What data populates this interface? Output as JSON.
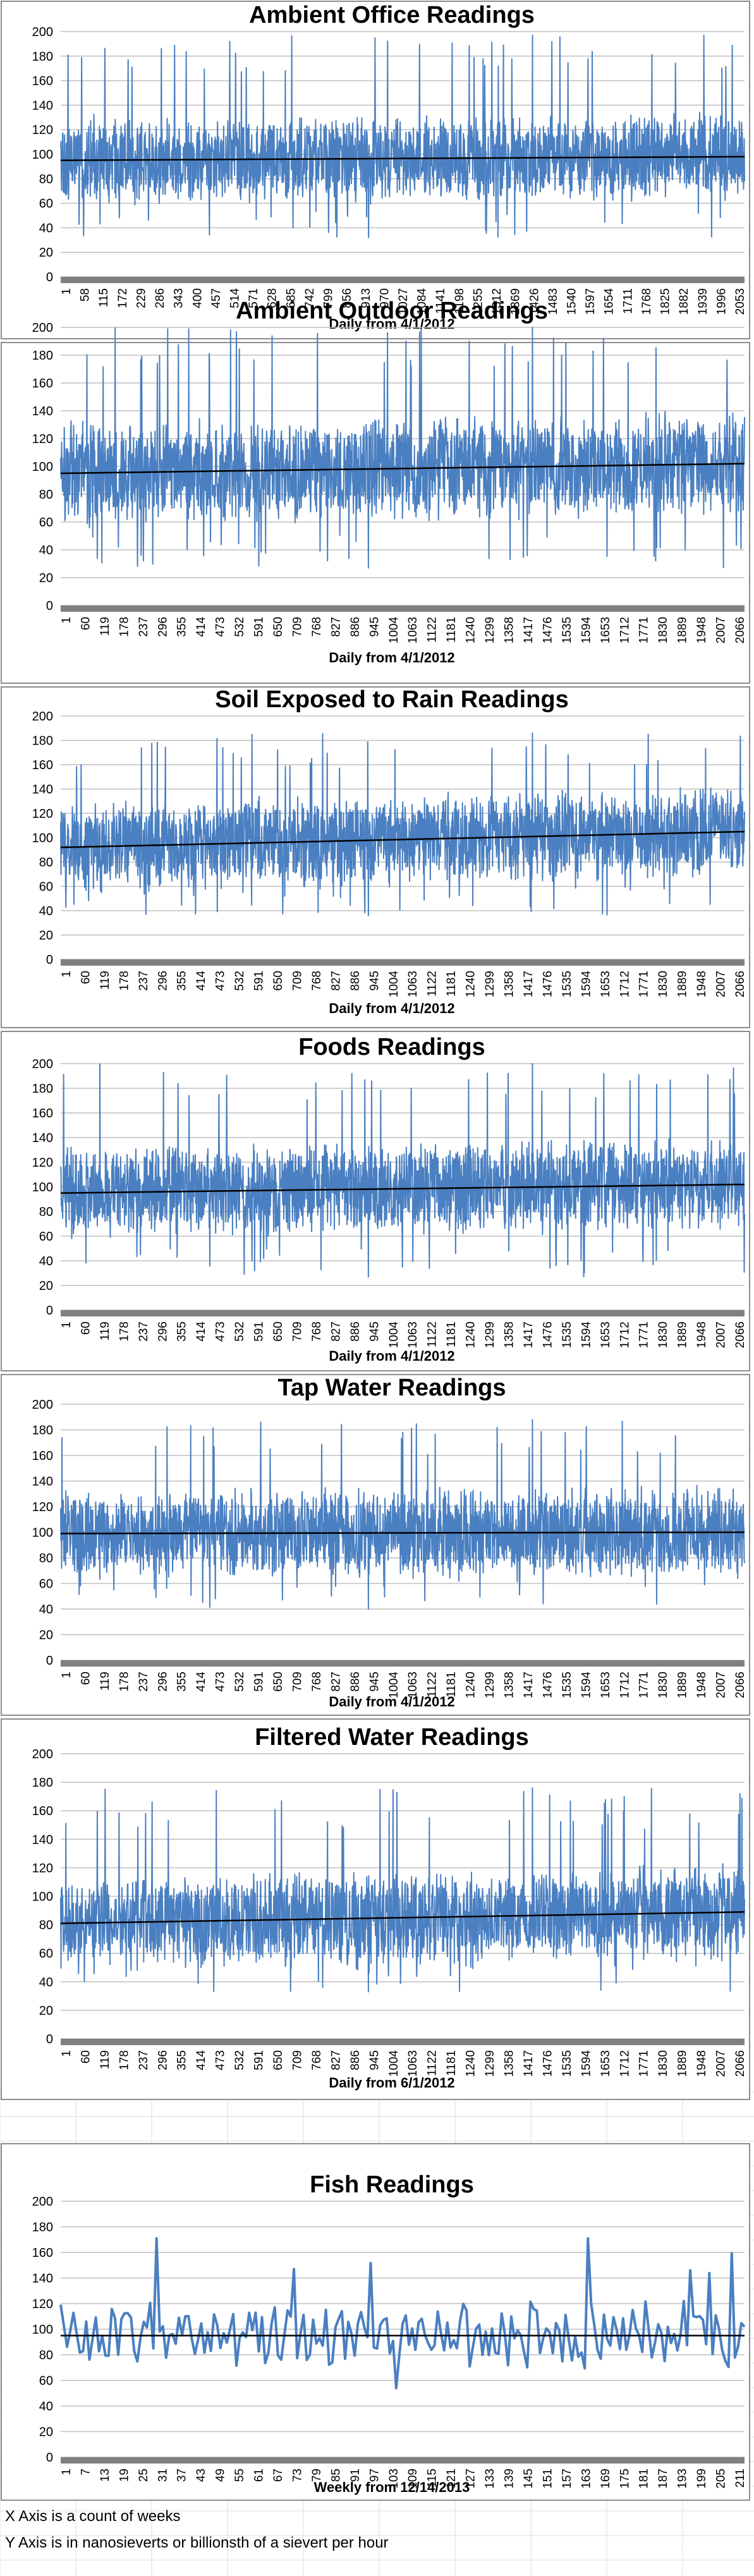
{
  "notes": {
    "x_axis": "X Axis is a count of weeks",
    "y_axis": "Y Axis is in nanosieverts or billionsth of a sievert per hour"
  },
  "colors": {
    "series_line": "#4a7fc1",
    "trendline": "#000000",
    "gridline": "#bfbfbf",
    "frame": "#8c8c8c",
    "sheet_grid": "#dcdcdc",
    "axis_band": "#808080"
  },
  "chart_data": [
    {
      "type": "line",
      "title": "Ambient Office Readings",
      "xlabel": "Daily from 4/1/2012",
      "ylabel": "",
      "ylim": [
        0,
        200
      ],
      "y_ticks": [
        0,
        20,
        40,
        60,
        80,
        100,
        120,
        140,
        160,
        180,
        200
      ],
      "x_ticks": [
        "1",
        "58",
        "115",
        "172",
        "229",
        "286",
        "343",
        "400",
        "457",
        "514",
        "571",
        "628",
        "685",
        "742",
        "799",
        "856",
        "913",
        "970",
        "1027",
        "1084",
        "1141",
        "1198",
        "1255",
        "1312",
        "1369",
        "1426",
        "1483",
        "1540",
        "1597",
        "1654",
        "1711",
        "1768",
        "1825",
        "1882",
        "1939",
        "1996",
        "2053"
      ],
      "n_points": 2120,
      "series": [
        {
          "mean": 96,
          "min": 32,
          "max": 197,
          "band": [
            60,
            135
          ]
        }
      ],
      "trendline": {
        "type": "linear",
        "y_start": 95,
        "y_end": 98
      }
    },
    {
      "type": "line",
      "title": "Ambient Outdoor Readings",
      "xlabel": "Daily from 4/1/2012",
      "ylabel": "",
      "ylim": [
        0,
        200
      ],
      "y_ticks": [
        0,
        20,
        40,
        60,
        80,
        100,
        120,
        140,
        160,
        180,
        200
      ],
      "x_ticks": [
        "1",
        "60",
        "119",
        "178",
        "237",
        "296",
        "355",
        "414",
        "473",
        "532",
        "591",
        "650",
        "709",
        "768",
        "827",
        "886",
        "945",
        "1004",
        "1063",
        "1122",
        "1181",
        "1240",
        "1299",
        "1358",
        "1417",
        "1476",
        "1535",
        "1594",
        "1653",
        "1712",
        "1771",
        "1830",
        "1889",
        "1948",
        "2007",
        "2066"
      ],
      "n_points": 2110,
      "series": [
        {
          "mean": 99,
          "min": 27,
          "max": 200,
          "band": [
            60,
            140
          ]
        }
      ],
      "trendline": {
        "type": "linear",
        "y_start": 95,
        "y_end": 102
      }
    },
    {
      "type": "line",
      "title": "Soil Exposed to Rain Readings",
      "xlabel": "Daily from 4/1/2012",
      "ylabel": "",
      "ylim": [
        0,
        200
      ],
      "y_ticks": [
        0,
        20,
        40,
        60,
        80,
        100,
        120,
        140,
        160,
        180,
        200
      ],
      "x_ticks": [
        "1",
        "60",
        "119",
        "178",
        "237",
        "296",
        "355",
        "414",
        "473",
        "532",
        "591",
        "650",
        "709",
        "768",
        "827",
        "886",
        "945",
        "1004",
        "1063",
        "1122",
        "1181",
        "1240",
        "1299",
        "1358",
        "1417",
        "1476",
        "1535",
        "1594",
        "1653",
        "1712",
        "1771",
        "1830",
        "1889",
        "1948",
        "2007",
        "2066"
      ],
      "n_points": 2110,
      "series": [
        {
          "mean": 98,
          "min": 36,
          "max": 186,
          "band": [
            62,
            140
          ]
        }
      ],
      "trendline": {
        "type": "linear",
        "y_start": 92,
        "y_end": 105
      }
    },
    {
      "type": "line",
      "title": "Foods Readings",
      "xlabel": "Daily from 4/1/2012",
      "ylabel": "",
      "ylim": [
        0,
        200
      ],
      "y_ticks": [
        0,
        20,
        40,
        60,
        80,
        100,
        120,
        140,
        160,
        180,
        200
      ],
      "x_ticks": [
        "1",
        "60",
        "119",
        "178",
        "237",
        "296",
        "355",
        "414",
        "473",
        "532",
        "591",
        "650",
        "709",
        "768",
        "827",
        "886",
        "945",
        "1004",
        "1063",
        "1122",
        "1181",
        "1240",
        "1299",
        "1358",
        "1417",
        "1476",
        "1535",
        "1594",
        "1653",
        "1712",
        "1771",
        "1830",
        "1889",
        "1948",
        "2007",
        "2066"
      ],
      "n_points": 2110,
      "series": [
        {
          "mean": 99,
          "min": 27,
          "max": 200,
          "band": [
            60,
            140
          ]
        }
      ],
      "trendline": {
        "type": "linear",
        "y_start": 95,
        "y_end": 102
      }
    },
    {
      "type": "line",
      "title": "Tap Water Readings",
      "xlabel": "Daily from 4/1/2012",
      "ylabel": "",
      "ylim": [
        0,
        200
      ],
      "y_ticks": [
        0,
        20,
        40,
        60,
        80,
        100,
        120,
        140,
        160,
        180,
        200
      ],
      "x_ticks": [
        "1",
        "60",
        "119",
        "178",
        "237",
        "296",
        "355",
        "414",
        "473",
        "532",
        "591",
        "650",
        "709",
        "768",
        "827",
        "886",
        "945",
        "1004",
        "1063",
        "1122",
        "1181",
        "1240",
        "1299",
        "1358",
        "1417",
        "1476",
        "1535",
        "1594",
        "1653",
        "1712",
        "1771",
        "1830",
        "1889",
        "1948",
        "2007",
        "2066"
      ],
      "n_points": 2110,
      "series": [
        {
          "mean": 100,
          "min": 40,
          "max": 188,
          "band": [
            64,
            138
          ]
        }
      ],
      "trendline": {
        "type": "linear",
        "y_start": 99,
        "y_end": 100
      }
    },
    {
      "type": "line",
      "title": "Filtered Water Readings",
      "xlabel": "Daily from 6/1/2012",
      "ylabel": "",
      "ylim": [
        0,
        200
      ],
      "y_ticks": [
        0,
        20,
        40,
        60,
        80,
        100,
        120,
        140,
        160,
        180,
        200
      ],
      "x_ticks": [
        "1",
        "60",
        "119",
        "178",
        "237",
        "296",
        "355",
        "414",
        "473",
        "532",
        "591",
        "650",
        "709",
        "768",
        "827",
        "886",
        "945",
        "1004",
        "1063",
        "1122",
        "1181",
        "1240",
        "1299",
        "1358",
        "1417",
        "1476",
        "1535",
        "1594",
        "1653",
        "1712",
        "1771",
        "1830",
        "1889",
        "1948",
        "2007",
        "2066"
      ],
      "n_points": 2110,
      "series": [
        {
          "mean": 86,
          "min": 33,
          "max": 176,
          "band": [
            55,
            125
          ]
        }
      ],
      "trendline": {
        "type": "linear",
        "y_start": 81,
        "y_end": 89
      }
    },
    {
      "type": "line",
      "title": "Fish Readings",
      "xlabel": "Weekly from 12/14/2013",
      "ylabel": "",
      "ylim": [
        0,
        200
      ],
      "y_ticks": [
        0,
        20,
        40,
        60,
        80,
        100,
        120,
        140,
        160,
        180,
        200
      ],
      "x_ticks": [
        "1",
        "7",
        "13",
        "19",
        "25",
        "31",
        "37",
        "43",
        "49",
        "55",
        "61",
        "67",
        "73",
        "79",
        "85",
        "91",
        "97",
        "103",
        "109",
        "115",
        "121",
        "127",
        "133",
        "139",
        "145",
        "151",
        "157",
        "163",
        "169",
        "175",
        "181",
        "187",
        "193",
        "199",
        "205",
        "211"
      ],
      "n_points": 215,
      "series": [
        {
          "mean": 95,
          "min": 53,
          "max": 171,
          "band": [
            70,
            125
          ],
          "peaks": [
            [
              30,
              171
            ],
            [
              165,
              171
            ],
            [
              197,
              146
            ],
            [
              73,
              147
            ]
          ]
        }
      ],
      "trendline": {
        "type": "linear",
        "y_start": 95,
        "y_end": 95
      }
    }
  ]
}
